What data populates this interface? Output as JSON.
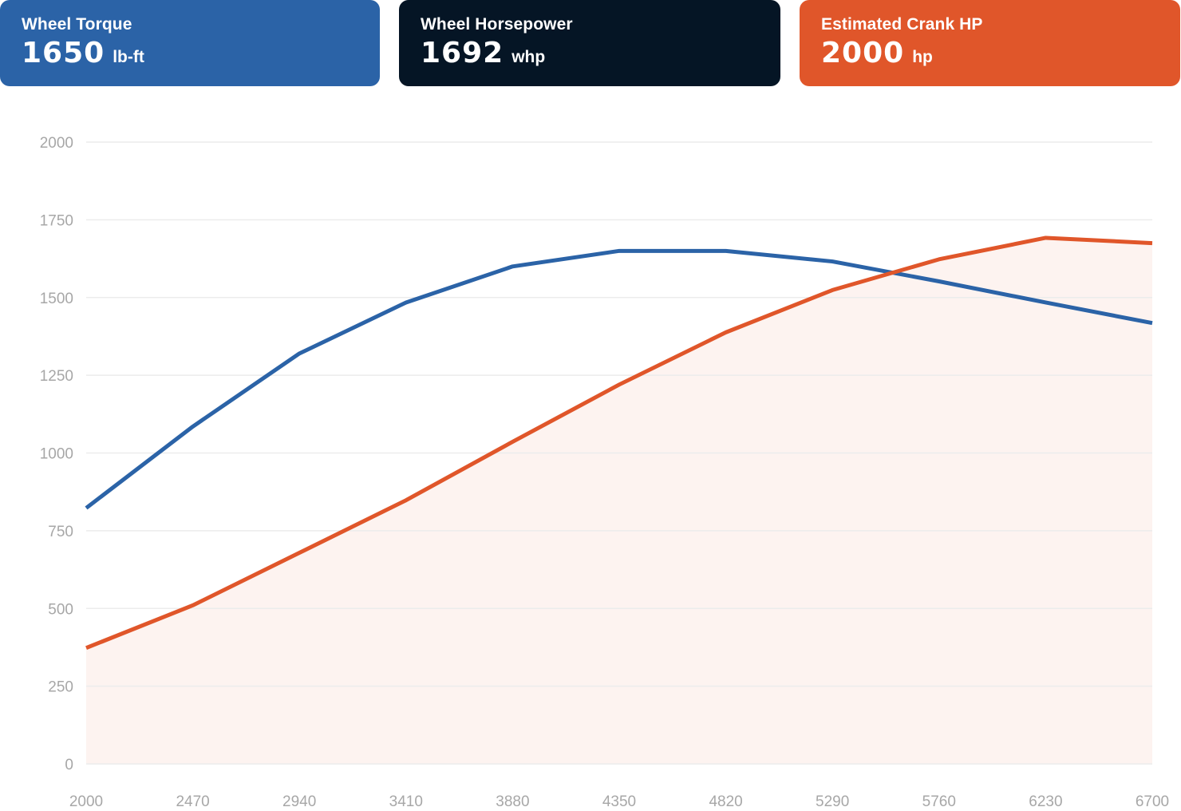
{
  "cards": [
    {
      "label": "Wheel Torque",
      "value": "1650",
      "unit": "lb-ft",
      "color": "#2b63a7"
    },
    {
      "label": "Wheel Horsepower",
      "value": "1692",
      "unit": "whp",
      "color": "#051525"
    },
    {
      "label": "Estimated Crank HP",
      "value": "2000",
      "unit": "hp",
      "color": "#e0562a"
    }
  ],
  "chart_data": {
    "type": "line",
    "title": "",
    "xlabel": "",
    "ylabel": "",
    "x": [
      2000,
      2470,
      2940,
      3410,
      3880,
      4350,
      4820,
      5290,
      5760,
      6230,
      6700
    ],
    "x_tick_labels": [
      "2000",
      "2470",
      "2940",
      "3410",
      "3880",
      "4350",
      "4820",
      "5290",
      "5760",
      "6230",
      "6700"
    ],
    "y_ticks": [
      0,
      250,
      500,
      750,
      1000,
      1250,
      1500,
      1750,
      2000
    ],
    "ylim": [
      0,
      2000
    ],
    "grid": true,
    "series": [
      {
        "key": "torque",
        "color": "#2b63a7",
        "area": false,
        "values": [
          823,
          1085,
          1320,
          1484,
          1600,
          1650,
          1650,
          1616,
          1552,
          1484,
          1418
        ]
      },
      {
        "key": "horsepower",
        "color": "#e0562a",
        "area": true,
        "area_color": "#fdf3f0",
        "values": [
          373,
          510,
          679,
          848,
          1036,
          1220,
          1388,
          1524,
          1623,
          1692,
          1675
        ]
      }
    ]
  }
}
